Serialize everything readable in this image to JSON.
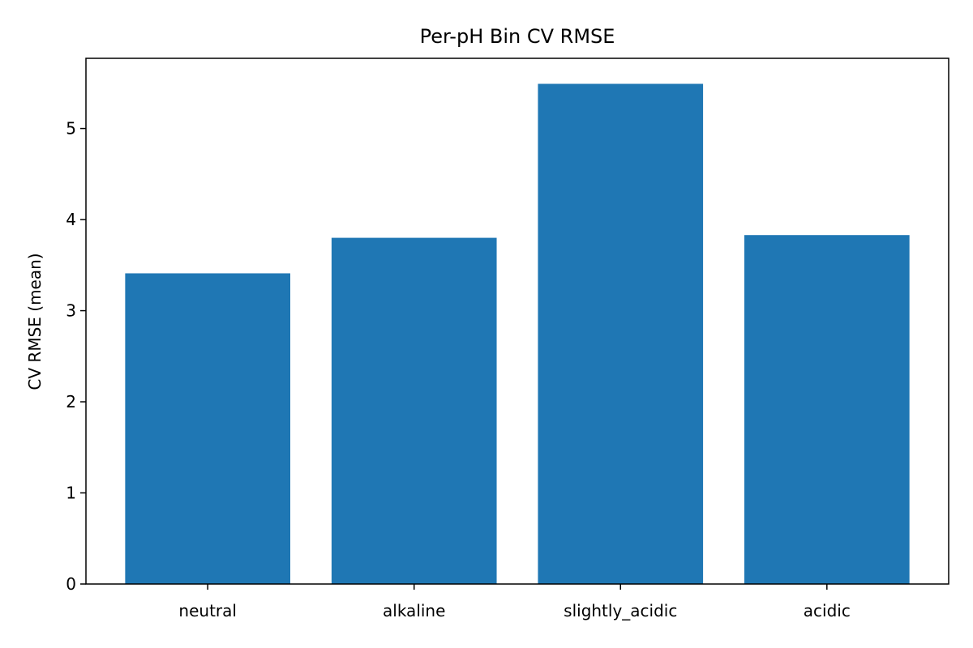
{
  "chart_data": {
    "type": "bar",
    "title": "Per-pH Bin CV RMSE",
    "xlabel": "",
    "ylabel": "CV RMSE (mean)",
    "categories": [
      "neutral",
      "alkaline",
      "slightly_acidic",
      "acidic"
    ],
    "values": [
      3.41,
      3.8,
      5.49,
      3.83
    ],
    "ylim": [
      0,
      5.77
    ],
    "yticks": [
      0,
      1,
      2,
      3,
      4,
      5
    ],
    "bar_color": "#1f77b4",
    "grid": false,
    "legend": "none"
  }
}
